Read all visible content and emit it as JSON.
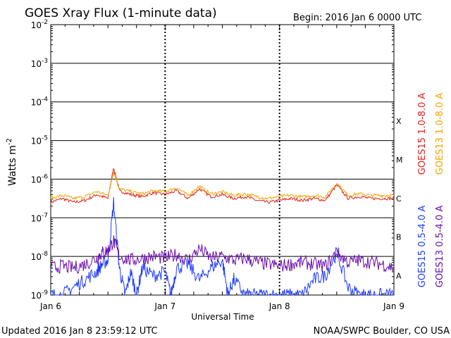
{
  "chart_data": {
    "type": "line",
    "title": "GOES Xray Flux (1-minute data)",
    "begin_label": "Begin:  2016 Jan 6 0000 UTC",
    "xlabel": "Universal Time",
    "ylabel_main": "Watts m",
    "ylabel_exp": "-2",
    "y_scale": "log",
    "ylim": [
      1e-09,
      0.01
    ],
    "y_ticks": [
      {
        "exp": -2
      },
      {
        "exp": -3
      },
      {
        "exp": -4
      },
      {
        "exp": -5
      },
      {
        "exp": -6
      },
      {
        "exp": -7
      },
      {
        "exp": -8
      },
      {
        "exp": -9
      }
    ],
    "x_ticks": [
      "Jan 6",
      "Jan 7",
      "Jan 8",
      "Jan 9"
    ],
    "flare_classes": [
      {
        "label": "X",
        "exp": -4
      },
      {
        "label": "M",
        "exp": -5
      },
      {
        "label": "C",
        "exp": -6
      },
      {
        "label": "B",
        "exp": -7
      },
      {
        "label": "A",
        "exp": -8
      }
    ],
    "grid": true,
    "series": [
      {
        "name": "GOES15 1.0-8.0 A",
        "color": "#e0201a",
        "x_days": [
          0.0,
          0.1,
          0.2,
          0.3,
          0.4,
          0.5,
          0.55,
          0.6,
          0.7,
          0.8,
          0.9,
          1.0,
          1.1,
          1.2,
          1.3,
          1.4,
          1.5,
          1.6,
          1.7,
          1.8,
          1.9,
          2.0,
          2.1,
          2.2,
          2.3,
          2.4,
          2.5,
          2.6,
          2.7,
          2.8,
          2.9,
          3.0
        ],
        "flux_exp": [
          -6.6,
          -6.5,
          -6.6,
          -6.55,
          -6.4,
          -6.5,
          -5.7,
          -6.3,
          -6.4,
          -6.45,
          -6.35,
          -6.4,
          -6.3,
          -6.5,
          -6.25,
          -6.45,
          -6.4,
          -6.5,
          -6.45,
          -6.55,
          -6.6,
          -6.55,
          -6.5,
          -6.55,
          -6.5,
          -6.55,
          -6.15,
          -6.5,
          -6.45,
          -6.5,
          -6.5,
          -6.5
        ]
      },
      {
        "name": "GOES13 1.0-8.0 A",
        "color": "#f4a300",
        "x_days": [
          0.0,
          0.1,
          0.2,
          0.3,
          0.4,
          0.5,
          0.55,
          0.6,
          0.7,
          0.8,
          0.9,
          1.0,
          1.1,
          1.2,
          1.3,
          1.4,
          1.5,
          1.6,
          1.7,
          1.8,
          1.9,
          2.0,
          2.1,
          2.2,
          2.3,
          2.4,
          2.5,
          2.6,
          2.7,
          2.8,
          2.9,
          3.0
        ],
        "flux_exp": [
          -6.5,
          -6.42,
          -6.5,
          -6.45,
          -6.32,
          -6.42,
          -5.8,
          -6.25,
          -6.32,
          -6.38,
          -6.3,
          -6.32,
          -6.22,
          -6.42,
          -6.18,
          -6.38,
          -6.33,
          -6.42,
          -6.38,
          -6.45,
          -6.5,
          -6.45,
          -6.42,
          -6.46,
          -6.42,
          -6.46,
          -6.1,
          -6.42,
          -6.38,
          -6.42,
          -6.42,
          -6.42
        ]
      },
      {
        "name": "GOES15 0.5-4.0 A",
        "color": "#1e3cff",
        "x_days": [
          0.0,
          0.1,
          0.2,
          0.3,
          0.4,
          0.45,
          0.5,
          0.55,
          0.6,
          0.65,
          0.7,
          0.75,
          0.8,
          0.9,
          1.0,
          1.05,
          1.1,
          1.2,
          1.3,
          1.4,
          1.5,
          1.55,
          1.6,
          1.7,
          1.8,
          1.9,
          2.0,
          2.1,
          2.2,
          2.3,
          2.4,
          2.5,
          2.6,
          2.7,
          2.8,
          2.9,
          3.0
        ],
        "flux_exp": [
          -9.0,
          -9.0,
          -8.8,
          -8.6,
          -8.4,
          -8.2,
          -8.1,
          -6.6,
          -8.3,
          -9.0,
          -8.4,
          -9.0,
          -8.3,
          -8.5,
          -8.4,
          -9.0,
          -8.3,
          -8.2,
          -8.6,
          -8.3,
          -8.1,
          -9.0,
          -8.6,
          -9.0,
          -9.0,
          -9.0,
          -9.0,
          -9.0,
          -9.0,
          -8.6,
          -8.5,
          -7.9,
          -8.8,
          -9.0,
          -9.0,
          -9.0,
          -9.0
        ]
      },
      {
        "name": "GOES13 0.5-4.0 A",
        "color": "#6a0dad",
        "x_days": [
          0.0,
          0.1,
          0.2,
          0.3,
          0.4,
          0.45,
          0.5,
          0.55,
          0.6,
          0.7,
          0.8,
          0.9,
          1.0,
          1.1,
          1.2,
          1.3,
          1.4,
          1.5,
          1.6,
          1.7,
          1.8,
          1.9,
          2.0,
          2.1,
          2.2,
          2.3,
          2.4,
          2.5,
          2.6,
          2.7,
          2.8,
          2.9,
          3.0
        ],
        "flux_exp": [
          -8.3,
          -8.25,
          -8.3,
          -8.2,
          -8.05,
          -7.9,
          -7.85,
          -7.6,
          -8.0,
          -8.1,
          -8.05,
          -8.0,
          -8.05,
          -7.95,
          -8.1,
          -7.8,
          -8.05,
          -8.0,
          -8.1,
          -8.05,
          -8.15,
          -8.2,
          -8.25,
          -8.2,
          -8.15,
          -8.2,
          -8.25,
          -7.9,
          -8.15,
          -8.1,
          -8.15,
          -8.2,
          -8.3
        ]
      }
    ],
    "legend_placement": "right, vertical"
  },
  "footer": {
    "updated": "Updated 2016 Jan  8 23:59:12 UTC",
    "credit": "NOAA/SWPC Boulder, CO USA"
  }
}
